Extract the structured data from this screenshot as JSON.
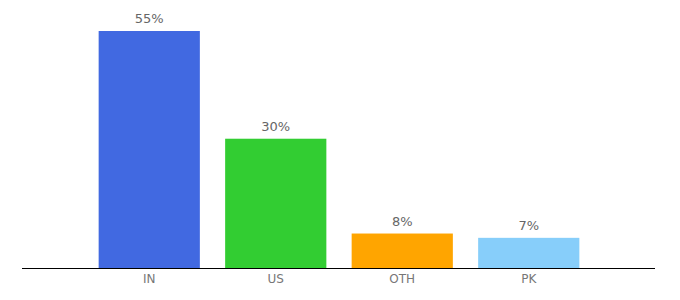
{
  "chart_data": {
    "type": "bar",
    "categories": [
      "IN",
      "US",
      "OTH",
      "PK"
    ],
    "values": [
      55,
      30,
      8,
      7
    ],
    "value_labels": [
      "55%",
      "30%",
      "8%",
      "7%"
    ],
    "colors": [
      "#4169e1",
      "#32cd32",
      "#ffa500",
      "#87cefa"
    ],
    "ylim": [
      0,
      55
    ],
    "data_labels": true,
    "tick_labels": "x",
    "grid": false
  }
}
